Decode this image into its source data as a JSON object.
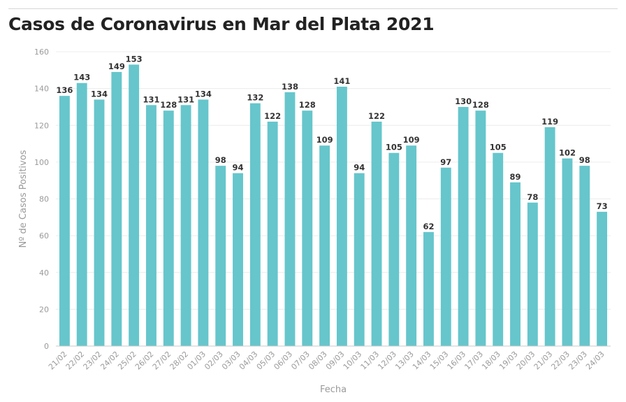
{
  "chart_data": {
    "type": "bar",
    "title": "Casos de Coronavirus en Mar del Plata 2021",
    "xlabel": "Fecha",
    "ylabel": "Nº de Casos Positivos",
    "ylim": [
      0,
      160
    ],
    "yticks": [
      0,
      20,
      40,
      60,
      80,
      100,
      120,
      140,
      160
    ],
    "grid": true,
    "bar_color": "#66c6cc",
    "categories": [
      "21/02",
      "22/02",
      "23/02",
      "24/02",
      "25/02",
      "26/02",
      "27/02",
      "28/02",
      "01/03",
      "02/03",
      "03/03",
      "04/03",
      "05/03",
      "06/03",
      "07/03",
      "08/03",
      "09/03",
      "10/03",
      "11/03",
      "12/03",
      "13/03",
      "14/03",
      "15/03",
      "16/03",
      "17/03",
      "18/03",
      "19/03",
      "20/03",
      "21/03",
      "22/03",
      "23/03",
      "24/03"
    ],
    "values": [
      136,
      143,
      134,
      149,
      153,
      131,
      128,
      131,
      134,
      98,
      94,
      132,
      122,
      138,
      128,
      109,
      141,
      94,
      122,
      105,
      109,
      62,
      97,
      130,
      128,
      105,
      89,
      78,
      119,
      102,
      98,
      73
    ]
  }
}
